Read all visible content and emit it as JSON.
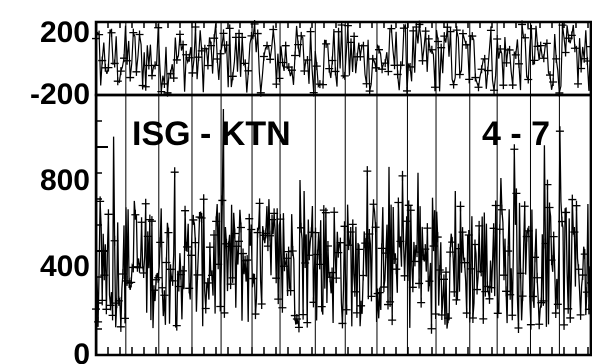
{
  "chart_data": [
    {
      "type": "line",
      "panel": "residual",
      "title": "",
      "xlabel": "",
      "ylabel": "",
      "ylim": [
        -200,
        200
      ],
      "ytick_labels": [
        "200",
        "-200"
      ],
      "series_color": "#000000",
      "marker": "plus",
      "noise_amplitude": 200,
      "n_points": 160
    },
    {
      "type": "line",
      "panel": "main",
      "title": "",
      "xlabel": "",
      "ylabel": "",
      "ylim": [
        0,
        1000
      ],
      "ytick_labels": [
        "800",
        "400",
        "0"
      ],
      "ytick_values": [
        800,
        400,
        0
      ],
      "series_color": "#000000",
      "marker": "plus",
      "typical_range": [
        100,
        600
      ],
      "peak_max": 1000,
      "n_points": 160
    }
  ],
  "annotations": {
    "station_pair": "ISG - KTN",
    "range": "4 - 7"
  }
}
